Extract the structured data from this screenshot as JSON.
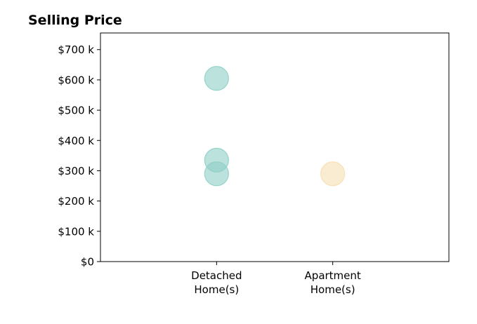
{
  "chart_data": {
    "type": "scatter",
    "title": "Selling Price",
    "xlabel": "",
    "ylabel": "",
    "categories": [
      [
        "Detached",
        "Home(s)"
      ],
      [
        "Apartment",
        "Home(s)"
      ]
    ],
    "y_ticks": [
      0,
      100000,
      200000,
      300000,
      400000,
      500000,
      600000,
      700000
    ],
    "y_tick_labels": [
      "$0",
      "$100 k",
      "$200 k",
      "$300 k",
      "$400 k",
      "$500 k",
      "$600 k",
      "$700 k"
    ],
    "ylim": [
      0,
      755000
    ],
    "x_range": [
      -1,
      2
    ],
    "grid": false,
    "points": [
      {
        "category": 0,
        "y": 605000,
        "color": "#8ecfc6"
      },
      {
        "category": 0,
        "y": 335000,
        "color": "#8ecfc6"
      },
      {
        "category": 0,
        "y": 290000,
        "color": "#8ecfc6"
      },
      {
        "category": 1,
        "y": 290000,
        "color": "#f7dfb0"
      }
    ]
  }
}
